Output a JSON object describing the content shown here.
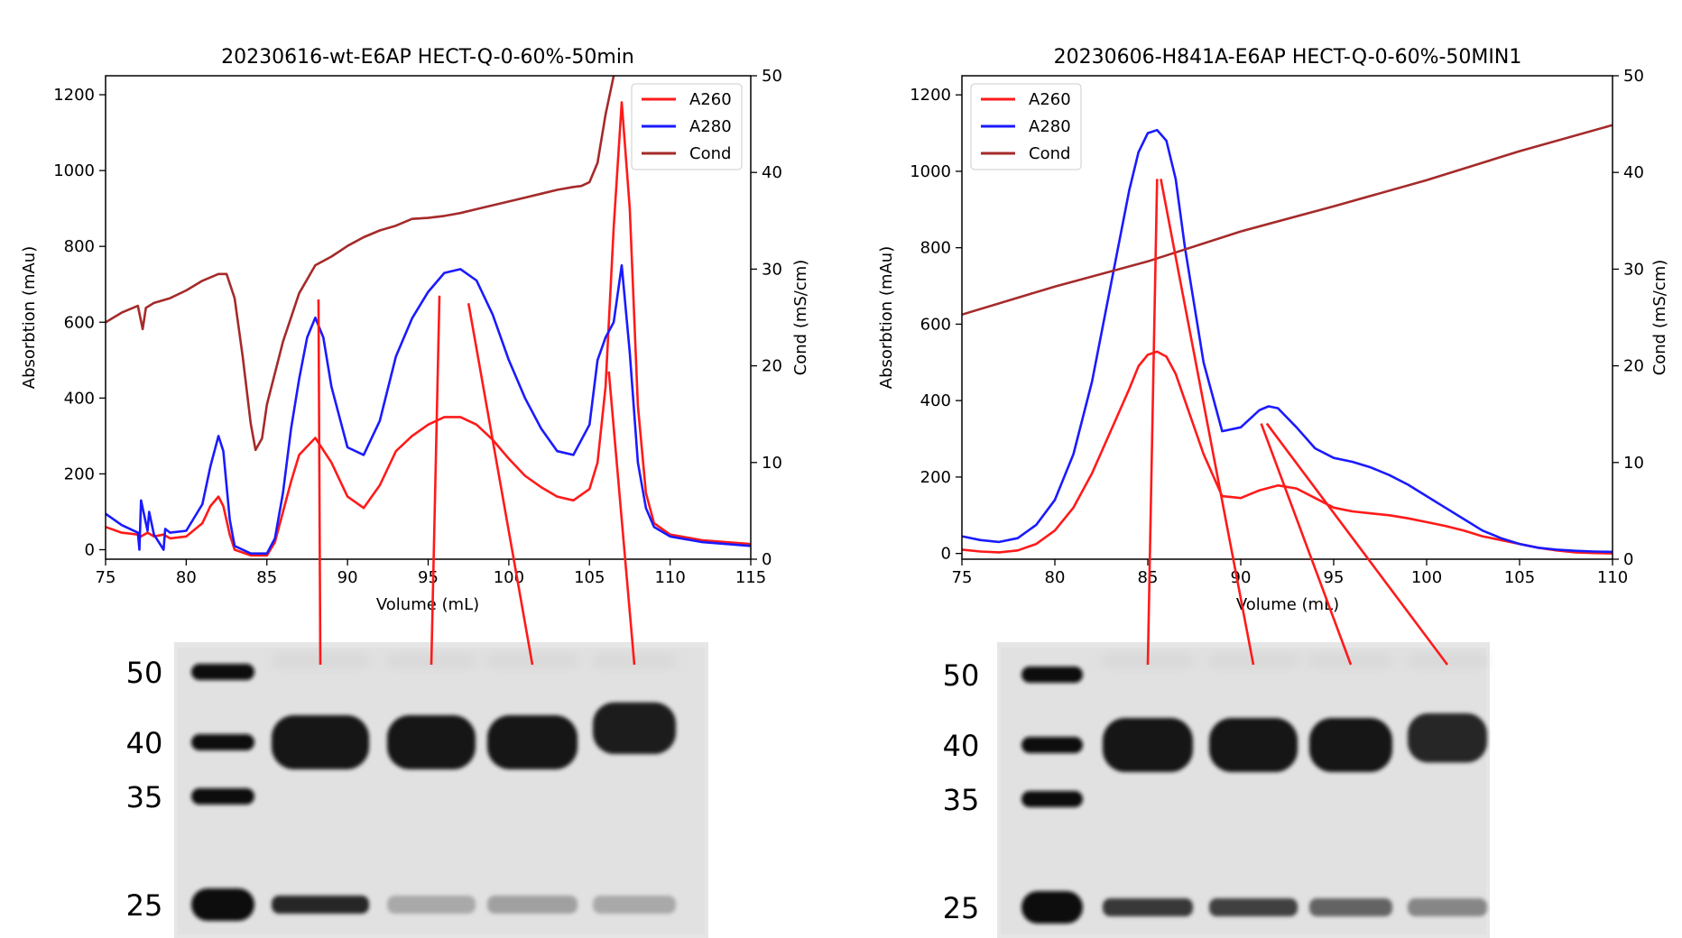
{
  "colors": {
    "A260": "#ff1a1a",
    "A280": "#1a1aff",
    "Cond": "#a52a2a",
    "connector": "#ff1a1a"
  },
  "chart_data": [
    {
      "type": "line",
      "title": "20230616-wt-E6AP HECT-Q-0-60%-50min",
      "xlabel": "Volume (mL)",
      "ylabel": "Absorbtion (mAu)",
      "y2label": "Cond (mS/cm)",
      "xlim": [
        75,
        115
      ],
      "ylim": [
        -25,
        1250
      ],
      "y2lim": [
        0,
        50
      ],
      "xticks": [
        75,
        80,
        85,
        90,
        95,
        100,
        105,
        110,
        115
      ],
      "yticks": [
        0,
        200,
        400,
        600,
        800,
        1000,
        1200
      ],
      "y2ticks": [
        0,
        10,
        20,
        30,
        40,
        50
      ],
      "legend": "top-right",
      "grid": false,
      "series": [
        {
          "name": "A260",
          "axis": "left",
          "color_key": "A260",
          "x": [
            75,
            76,
            77,
            77.2,
            77.6,
            78,
            78.6,
            79,
            80,
            81,
            81.5,
            82,
            82.3,
            82.7,
            83,
            84,
            85,
            85.5,
            86,
            86.5,
            87,
            88,
            89,
            90,
            91,
            92,
            93,
            94,
            95,
            96,
            97,
            98,
            99,
            100,
            101,
            102,
            103,
            104,
            105,
            105.5,
            106,
            106.5,
            107,
            107.5,
            108,
            108.5,
            109,
            110,
            112,
            115
          ],
          "y": [
            60,
            45,
            40,
            35,
            45,
            35,
            40,
            30,
            35,
            70,
            115,
            140,
            115,
            40,
            0,
            -15,
            -15,
            20,
            100,
            180,
            250,
            295,
            230,
            140,
            110,
            170,
            260,
            300,
            330,
            350,
            350,
            330,
            290,
            240,
            195,
            165,
            140,
            130,
            160,
            230,
            430,
            850,
            1180,
            900,
            380,
            150,
            70,
            40,
            25,
            15
          ]
        },
        {
          "name": "A280",
          "axis": "left",
          "color_key": "A280",
          "x": [
            75,
            76,
            77,
            77.1,
            77.2,
            77.6,
            77.7,
            78,
            78.6,
            78.7,
            79,
            80,
            81,
            81.5,
            82,
            82.3,
            82.7,
            83,
            84,
            85,
            85.5,
            86,
            86.5,
            87,
            87.5,
            88,
            88.5,
            89,
            90,
            91,
            92,
            93,
            94,
            95,
            96,
            97,
            98,
            99,
            100,
            101,
            102,
            103,
            104,
            105,
            105.5,
            106,
            106.5,
            107,
            107.5,
            108,
            108.5,
            109,
            110,
            112,
            115
          ],
          "y": [
            95,
            65,
            45,
            0,
            130,
            50,
            100,
            40,
            0,
            55,
            45,
            50,
            120,
            220,
            300,
            260,
            80,
            10,
            -10,
            -10,
            30,
            150,
            320,
            450,
            560,
            612,
            560,
            430,
            270,
            250,
            340,
            510,
            610,
            680,
            730,
            740,
            710,
            620,
            500,
            400,
            320,
            260,
            250,
            330,
            500,
            560,
            600,
            750,
            520,
            230,
            110,
            60,
            35,
            20,
            10
          ]
        },
        {
          "name": "Cond",
          "axis": "right",
          "color_key": "Cond",
          "x": [
            75,
            76,
            77,
            77.3,
            77.5,
            78,
            79,
            80,
            81,
            82,
            82.5,
            83,
            83.5,
            84,
            84.3,
            84.7,
            85,
            86,
            87,
            88,
            89,
            90,
            91,
            92,
            93,
            94,
            95,
            96,
            97,
            98,
            99,
            100,
            101,
            102,
            103,
            104,
            104.5,
            105,
            105.5,
            106,
            106.5,
            107
          ],
          "y": [
            24.5,
            25.5,
            26.2,
            23.8,
            26,
            26.5,
            27,
            27.8,
            28.8,
            29.5,
            29.5,
            27,
            21,
            14,
            11.3,
            12.5,
            16,
            22.5,
            27.5,
            30.4,
            31.3,
            32.4,
            33.3,
            34,
            34.5,
            35.2,
            35.3,
            35.5,
            35.8,
            36.2,
            36.6,
            37,
            37.4,
            37.8,
            38.2,
            38.5,
            38.6,
            39,
            41,
            46,
            50,
            55
          ]
        }
      ],
      "connectors": [
        {
          "from_x": 88.2,
          "from_y": 660,
          "to_lane": 1
        },
        {
          "from_x": 95.7,
          "from_y": 670,
          "to_lane": 2
        },
        {
          "from_x": 97.5,
          "from_y": 650,
          "to_lane": 3
        },
        {
          "from_x": 106.2,
          "from_y": 470,
          "to_lane": 4
        }
      ]
    },
    {
      "type": "line",
      "title": "20230606-H841A-E6AP HECT-Q-0-60%-50MIN1",
      "xlabel": "Volume (mL)",
      "ylabel": "Absorbtion (mAu)",
      "y2label": "Cond (mS/cm)",
      "xlim": [
        75,
        110
      ],
      "ylim": [
        -15,
        1250
      ],
      "y2lim": [
        0,
        50
      ],
      "xticks": [
        75,
        80,
        85,
        90,
        95,
        100,
        105,
        110
      ],
      "yticks": [
        0,
        200,
        400,
        600,
        800,
        1000,
        1200
      ],
      "y2ticks": [
        0,
        10,
        20,
        30,
        40,
        50
      ],
      "legend": "top-left",
      "grid": false,
      "series": [
        {
          "name": "A260",
          "axis": "left",
          "color_key": "A260",
          "x": [
            75,
            76,
            77,
            78,
            79,
            80,
            81,
            82,
            83,
            84,
            84.5,
            85,
            85.5,
            86,
            86.5,
            87,
            88,
            89,
            90,
            91,
            92,
            93,
            94,
            95,
            96,
            97,
            98,
            99,
            100,
            101,
            102,
            103,
            104,
            105,
            106,
            107,
            108,
            109,
            110
          ],
          "y": [
            10,
            5,
            3,
            8,
            25,
            60,
            120,
            210,
            320,
            430,
            490,
            520,
            528,
            515,
            470,
            400,
            260,
            150,
            145,
            165,
            178,
            170,
            145,
            120,
            110,
            105,
            100,
            92,
            82,
            72,
            60,
            45,
            35,
            25,
            15,
            8,
            3,
            1,
            0
          ]
        },
        {
          "name": "A280",
          "axis": "left",
          "color_key": "A280",
          "x": [
            75,
            76,
            77,
            78,
            79,
            80,
            81,
            82,
            83,
            84,
            84.5,
            85,
            85.5,
            86,
            86.5,
            87,
            88,
            89,
            90,
            91,
            91.5,
            92,
            93,
            94,
            95,
            96,
            97,
            98,
            99,
            100,
            101,
            102,
            103,
            104,
            105,
            106,
            107,
            108,
            109,
            110
          ],
          "y": [
            45,
            35,
            30,
            40,
            75,
            140,
            260,
            450,
            700,
            950,
            1050,
            1100,
            1108,
            1080,
            980,
            800,
            500,
            320,
            330,
            375,
            385,
            380,
            330,
            275,
            250,
            240,
            225,
            205,
            180,
            150,
            120,
            90,
            60,
            40,
            25,
            15,
            10,
            7,
            5,
            4
          ]
        },
        {
          "name": "Cond",
          "axis": "right",
          "color_key": "Cond",
          "x": [
            75,
            80,
            85,
            90,
            95,
            100,
            105,
            110
          ],
          "y": [
            25.3,
            28.2,
            30.8,
            33.9,
            36.5,
            39.2,
            42.2,
            44.9
          ]
        }
      ],
      "connectors": [
        {
          "from_x": 85.5,
          "from_y": 980,
          "to_lane": 1
        },
        {
          "from_x": 85.7,
          "from_y": 980,
          "to_lane": 2
        },
        {
          "from_x": 91.1,
          "from_y": 340,
          "to_lane": 3
        },
        {
          "from_x": 91.4,
          "from_y": 340,
          "to_lane": 4
        }
      ]
    }
  ],
  "gels": [
    {
      "marker_labels": [
        "50",
        "40",
        "35",
        "25"
      ],
      "marker_kda": [
        50,
        40,
        35,
        25
      ],
      "sample_lanes": 4,
      "bands": [
        {
          "lane": 1,
          "kda": 40,
          "intensity": 1.0
        },
        {
          "lane": 1,
          "kda": 25,
          "intensity": 0.9
        },
        {
          "lane": 2,
          "kda": 40,
          "intensity": 1.0
        },
        {
          "lane": 2,
          "kda": 25,
          "intensity": 0.15
        },
        {
          "lane": 3,
          "kda": 40,
          "intensity": 1.0
        },
        {
          "lane": 3,
          "kda": 25,
          "intensity": 0.2
        },
        {
          "lane": 4,
          "kda": 42,
          "intensity": 0.95
        },
        {
          "lane": 4,
          "kda": 25,
          "intensity": 0.15
        }
      ]
    },
    {
      "marker_labels": [
        "50",
        "40",
        "35",
        "25"
      ],
      "marker_kda": [
        50,
        40,
        35,
        25
      ],
      "sample_lanes": 4,
      "bands": [
        {
          "lane": 1,
          "kda": 40,
          "intensity": 1.0
        },
        {
          "lane": 1,
          "kda": 25,
          "intensity": 0.8
        },
        {
          "lane": 2,
          "kda": 40,
          "intensity": 1.0
        },
        {
          "lane": 2,
          "kda": 25,
          "intensity": 0.75
        },
        {
          "lane": 3,
          "kda": 40,
          "intensity": 1.0
        },
        {
          "lane": 3,
          "kda": 25,
          "intensity": 0.55
        },
        {
          "lane": 4,
          "kda": 41,
          "intensity": 0.9
        },
        {
          "lane": 4,
          "kda": 25,
          "intensity": 0.35
        }
      ]
    }
  ]
}
